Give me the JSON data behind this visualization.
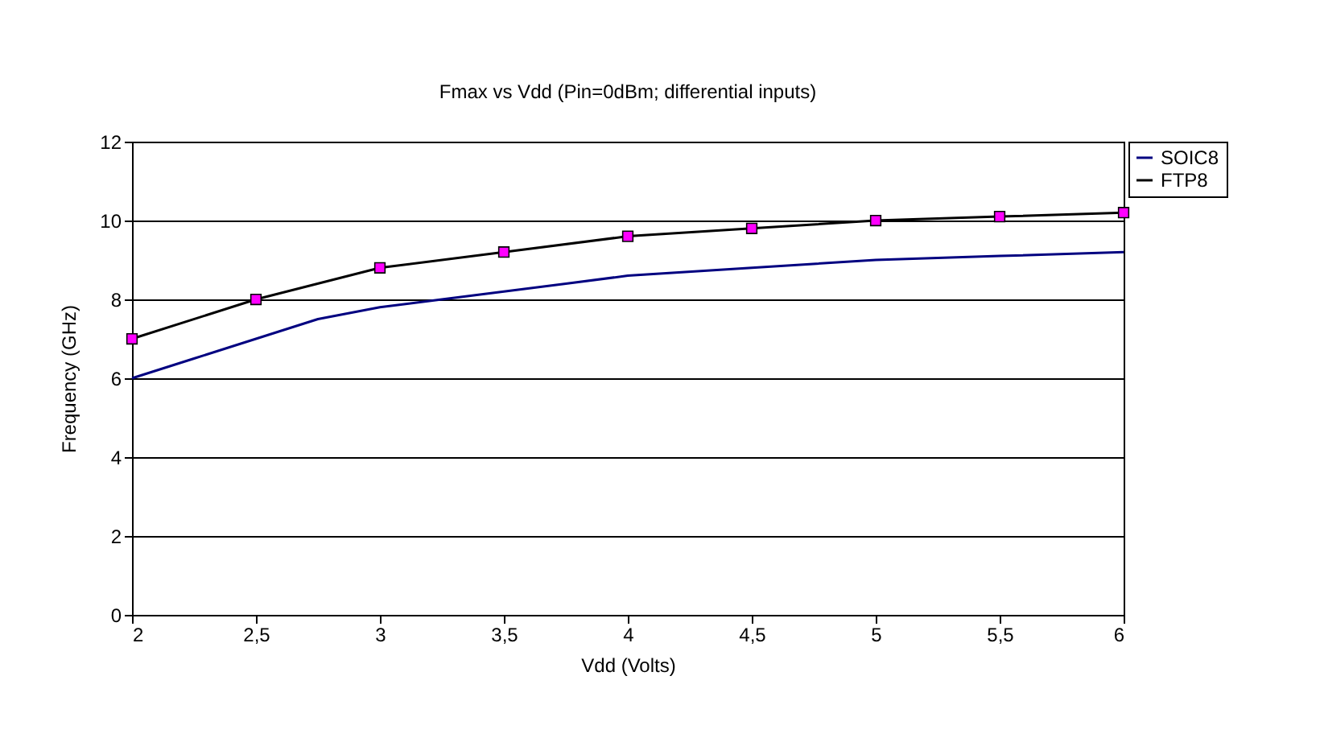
{
  "chart_data": {
    "type": "line",
    "title": "Fmax vs Vdd (Pin=0dBm; differential inputs)",
    "xlabel": "Vdd (Volts)",
    "ylabel": "Frequency (GHz)",
    "series": [
      {
        "name": "SOIC8",
        "color": "#000080",
        "marker": "none",
        "x": [
          2,
          2.25,
          2.5,
          2.75,
          3,
          3.25,
          3.5,
          3.75,
          4,
          4.5,
          5,
          5.5,
          6
        ],
        "values": [
          6,
          6.5,
          7,
          7.5,
          7.8,
          8,
          8.2,
          8.4,
          8.6,
          8.8,
          9,
          9.1,
          9.2
        ]
      },
      {
        "name": "FTP8",
        "color": "#000000",
        "marker": "square",
        "x": [
          2,
          2.5,
          3,
          3.5,
          4,
          4.5,
          5,
          5.5,
          6
        ],
        "values": [
          7,
          8,
          8.8,
          9.2,
          9.6,
          9.8,
          10,
          10.1,
          10.2
        ]
      }
    ],
    "xlim": [
      2,
      6
    ],
    "xticks": [
      2,
      {
        "value": 2.5,
        "label": "2,5"
      },
      3,
      {
        "value": 3.5,
        "label": "3,5"
      },
      4,
      {
        "value": 4.5,
        "label": "4,5"
      },
      5,
      {
        "value": 5.5,
        "label": "5,5"
      },
      6
    ],
    "ylim": [
      0,
      12
    ],
    "yticks": [
      0,
      2,
      4,
      6,
      8,
      10,
      12
    ],
    "grid": "y",
    "legend": "right",
    "line_style": "solid"
  }
}
